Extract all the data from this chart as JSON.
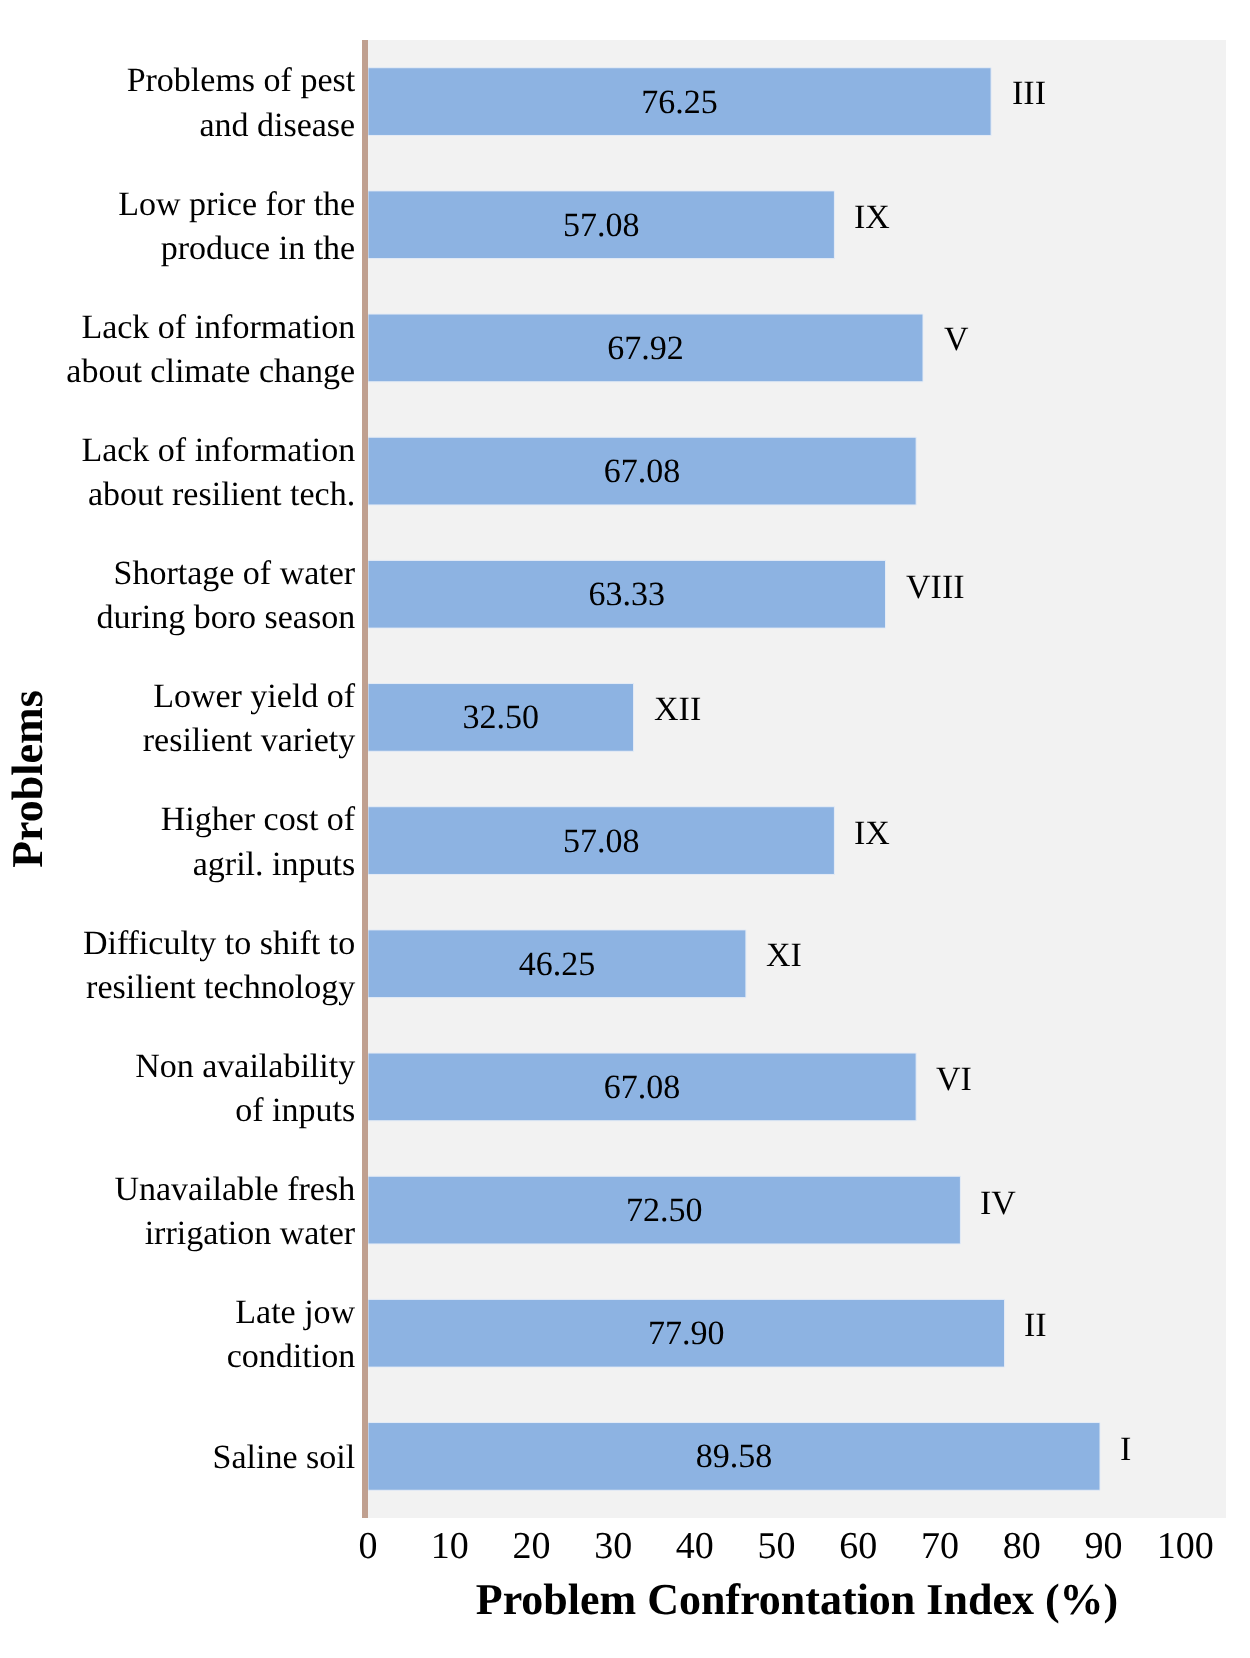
{
  "chart_data": {
    "type": "bar",
    "orientation": "horizontal",
    "xlabel": "Problem Confrontation Index (%)",
    "ylabel": "Problems",
    "categories": [
      "Problems of pest\nand disease",
      "Low price for the\nproduce in the",
      "Lack of information\nabout climate change",
      "Lack of information\nabout resilient tech.",
      "Shortage of water\nduring boro season",
      "Lower yield of\nresilient variety",
      "Higher cost of\nagril. inputs",
      "Difficulty to shift to\nresilient technology",
      "Non availability\nof inputs",
      "Unavailable fresh\nirrigation water",
      "Late jow\ncondition",
      "Saline soil"
    ],
    "values": [
      76.25,
      57.08,
      67.92,
      67.08,
      63.33,
      32.5,
      57.08,
      46.25,
      67.08,
      72.5,
      77.9,
      89.58
    ],
    "color": "#8db3e2",
    "value_labels": [
      "76.25",
      "57.08",
      "67.92",
      "67.08",
      "63.33",
      "32.50",
      "57.08",
      "46.25",
      "67.08",
      "72.50",
      "77.90",
      "89.58"
    ],
    "xlim": [
      0,
      105
    ],
    "xticks": [
      0,
      10,
      20,
      30,
      40,
      50,
      60,
      70,
      80,
      90,
      100
    ],
    "grid": false,
    "annotations": [
      {
        "text": "III",
        "x": 76.25,
        "y": "Problems of pest\nand disease"
      },
      {
        "text": "IX",
        "x": 57.08,
        "y": "Low price for the\nproduce in the"
      },
      {
        "text": "V",
        "x": 67.92,
        "y": "Lack of information\nabout climate change"
      },
      {
        "text": "VIII",
        "x": 63.33,
        "y": "Shortage of water\nduring boro season"
      },
      {
        "text": "XII",
        "x": 32.5,
        "y": "Lower yield of\nresilient variety"
      },
      {
        "text": "IX",
        "x": 57.08,
        "y": "Higher cost of\nagril. inputs"
      },
      {
        "text": "XI",
        "x": 46.25,
        "y": "Difficulty to shift to\nresilient technology"
      },
      {
        "text": "VI",
        "x": 67.08,
        "y": "Non availability\nof inputs"
      },
      {
        "text": "IV",
        "x": 72.5,
        "y": "Unavailable fresh\nirrigation water"
      },
      {
        "text": "II",
        "x": 77.9,
        "y": "Late jow\ncondition"
      },
      {
        "text": "I",
        "x": 89.58,
        "y": "Saline soil"
      }
    ]
  }
}
